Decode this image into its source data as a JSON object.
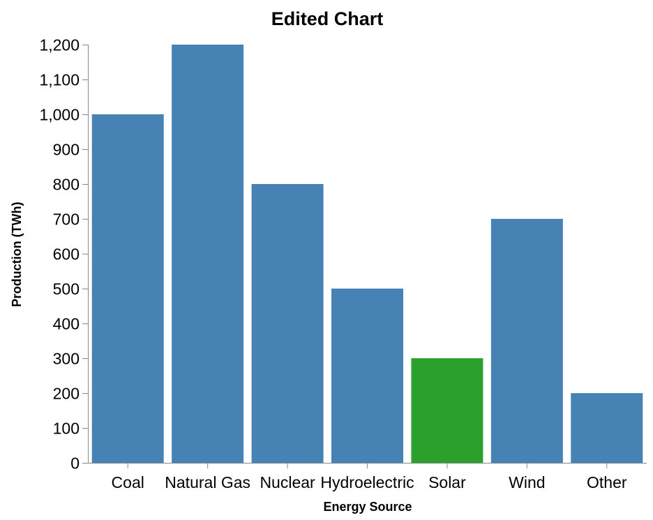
{
  "chart_data": {
    "type": "bar",
    "title": "Edited Chart",
    "xlabel": "Energy Source",
    "ylabel": "Production (TWh)",
    "categories": [
      "Coal",
      "Natural Gas",
      "Nuclear",
      "Hydroelectric",
      "Solar",
      "Wind",
      "Other"
    ],
    "values": [
      1000,
      1200,
      800,
      500,
      300,
      700,
      200
    ],
    "ylim": [
      0,
      1200
    ],
    "yticks": [
      "0",
      "100",
      "200",
      "300",
      "400",
      "500",
      "600",
      "700",
      "800",
      "900",
      "1,000",
      "1,100",
      "1,200"
    ],
    "grid": false,
    "colors": {
      "default": "#4682b4",
      "highlight": "#2ca02c",
      "axis": "#888888"
    },
    "highlighted_category": "Solar"
  }
}
